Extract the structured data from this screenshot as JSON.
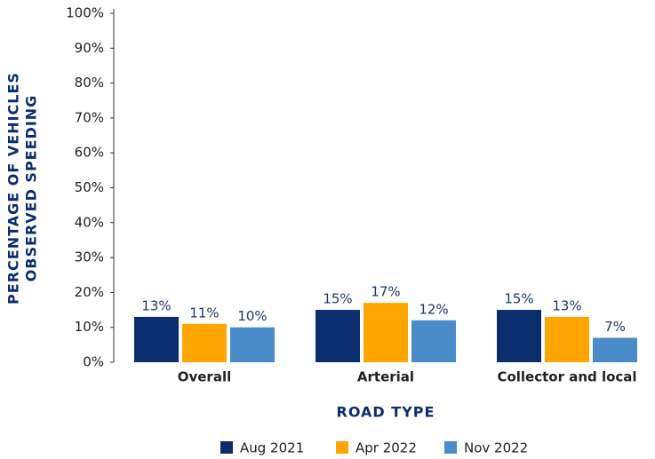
{
  "chart_data": {
    "type": "bar",
    "y_label": [
      "PERCENTAGE OF VEHICLES",
      "OBSERVED SPEEDING"
    ],
    "x_label": "ROAD TYPE",
    "categories": [
      "Overall",
      "Arterial",
      "Collector and local"
    ],
    "series": [
      {
        "name": "Aug 2021",
        "color": "#0b2d6e",
        "values": [
          13,
          15,
          15
        ],
        "value_labels": [
          "13%",
          "15%",
          "15%"
        ]
      },
      {
        "name": "Apr 2022",
        "color": "#ffa500",
        "values": [
          11,
          17,
          13
        ],
        "value_labels": [
          "11%",
          "17%",
          "13%"
        ]
      },
      {
        "name": "Nov 2022",
        "color": "#4a8bc9",
        "values": [
          10,
          12,
          7
        ],
        "value_labels": [
          "10%",
          "12%",
          "7%"
        ]
      }
    ],
    "ylim": [
      0,
      100
    ],
    "yticks": [
      {
        "value": 0,
        "label": "0%"
      },
      {
        "value": 10,
        "label": "10%"
      },
      {
        "value": 20,
        "label": "20%"
      },
      {
        "value": 30,
        "label": "30%"
      },
      {
        "value": 40,
        "label": "40%"
      },
      {
        "value": 50,
        "label": "50%"
      },
      {
        "value": 60,
        "label": "60%"
      },
      {
        "value": 70,
        "label": "70%"
      },
      {
        "value": 80,
        "label": "80%"
      },
      {
        "value": 90,
        "label": "90%"
      },
      {
        "value": 100,
        "label": "100%"
      }
    ],
    "grid": false,
    "legend": "bottom"
  }
}
